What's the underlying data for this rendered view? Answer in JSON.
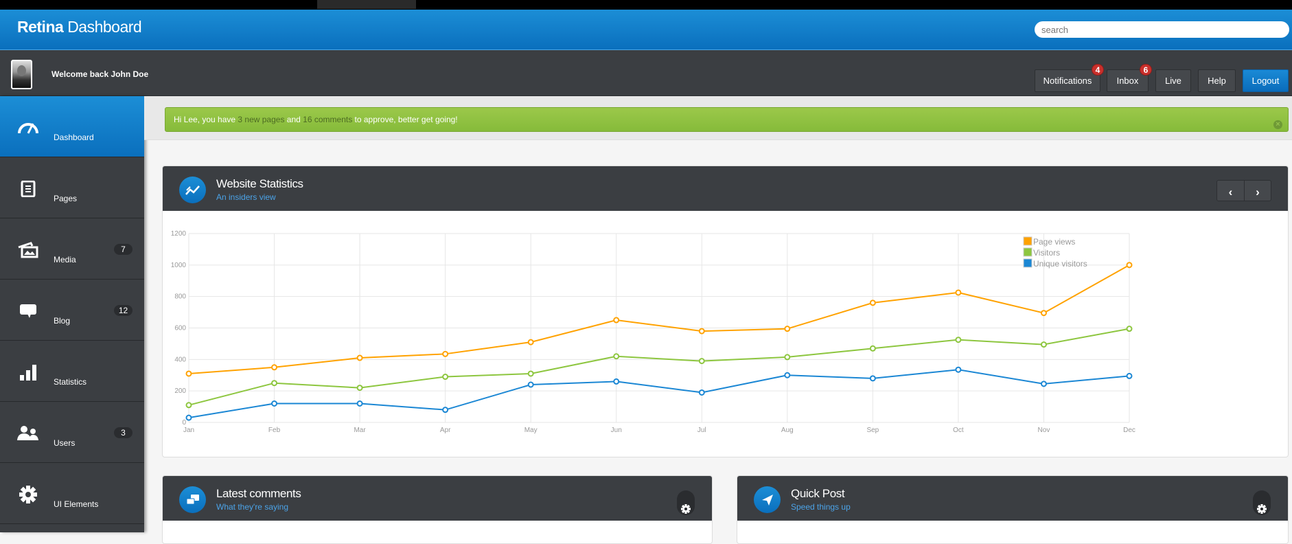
{
  "header": {
    "brand_bold": "Retina",
    "brand_light": "Dashboard",
    "search_placeholder": "search"
  },
  "userbar": {
    "welcome": "Welcome back John Doe",
    "buttons": [
      {
        "label": "Notifications",
        "badge": "4"
      },
      {
        "label": "Inbox",
        "badge": "6"
      },
      {
        "label": "Live"
      },
      {
        "label": "Help"
      },
      {
        "label": "Logout"
      }
    ]
  },
  "sidebar": {
    "items": [
      {
        "label": "Dashboard",
        "icon": "dashboard-gauge-icon",
        "active": true
      },
      {
        "label": "Pages",
        "icon": "document-icon"
      },
      {
        "label": "Media",
        "icon": "images-icon",
        "count": "7"
      },
      {
        "label": "Blog",
        "icon": "speech-bubble-icon",
        "count": "12"
      },
      {
        "label": "Statistics",
        "icon": "bar-chart-icon"
      },
      {
        "label": "Users",
        "icon": "users-icon",
        "count": "3"
      },
      {
        "label": "UI Elements",
        "icon": "gear-icon"
      }
    ]
  },
  "alert": {
    "pre": "Hi Lee, you have ",
    "link1": "3 new pages",
    "mid": " and ",
    "link2": "16 comments",
    "post": " to approve, better get going!"
  },
  "stats_panel": {
    "title": "Website Statistics",
    "subtitle": "An insiders view",
    "prev": "‹",
    "next": "›"
  },
  "comments_panel": {
    "title": "Latest comments",
    "subtitle": "What they're saying"
  },
  "quickpost_panel": {
    "title": "Quick Post",
    "subtitle": "Speed things up"
  },
  "colors": {
    "accent": "#0a6fbd",
    "page_views": "#ffa200",
    "visitors": "#8dc63f",
    "unique": "#1b87d4"
  },
  "chart_data": {
    "type": "line",
    "categories": [
      "Jan",
      "Feb",
      "Mar",
      "Apr",
      "May",
      "Jun",
      "Jul",
      "Aug",
      "Sep",
      "Oct",
      "Nov",
      "Dec"
    ],
    "ylim": [
      0,
      1200
    ],
    "yticks": [
      0,
      200,
      400,
      600,
      800,
      1000,
      1200
    ],
    "grid": true,
    "legend": "top-right",
    "series": [
      {
        "name": "Page views",
        "color": "#ffa200",
        "values": [
          310,
          350,
          410,
          435,
          510,
          650,
          580,
          595,
          760,
          825,
          695,
          1000
        ]
      },
      {
        "name": "Visitors",
        "color": "#8dc63f",
        "values": [
          110,
          250,
          220,
          290,
          310,
          420,
          390,
          415,
          470,
          525,
          495,
          595
        ]
      },
      {
        "name": "Unique visitors",
        "color": "#1b87d4",
        "values": [
          30,
          120,
          120,
          80,
          240,
          260,
          190,
          300,
          280,
          335,
          245,
          295
        ]
      }
    ]
  }
}
